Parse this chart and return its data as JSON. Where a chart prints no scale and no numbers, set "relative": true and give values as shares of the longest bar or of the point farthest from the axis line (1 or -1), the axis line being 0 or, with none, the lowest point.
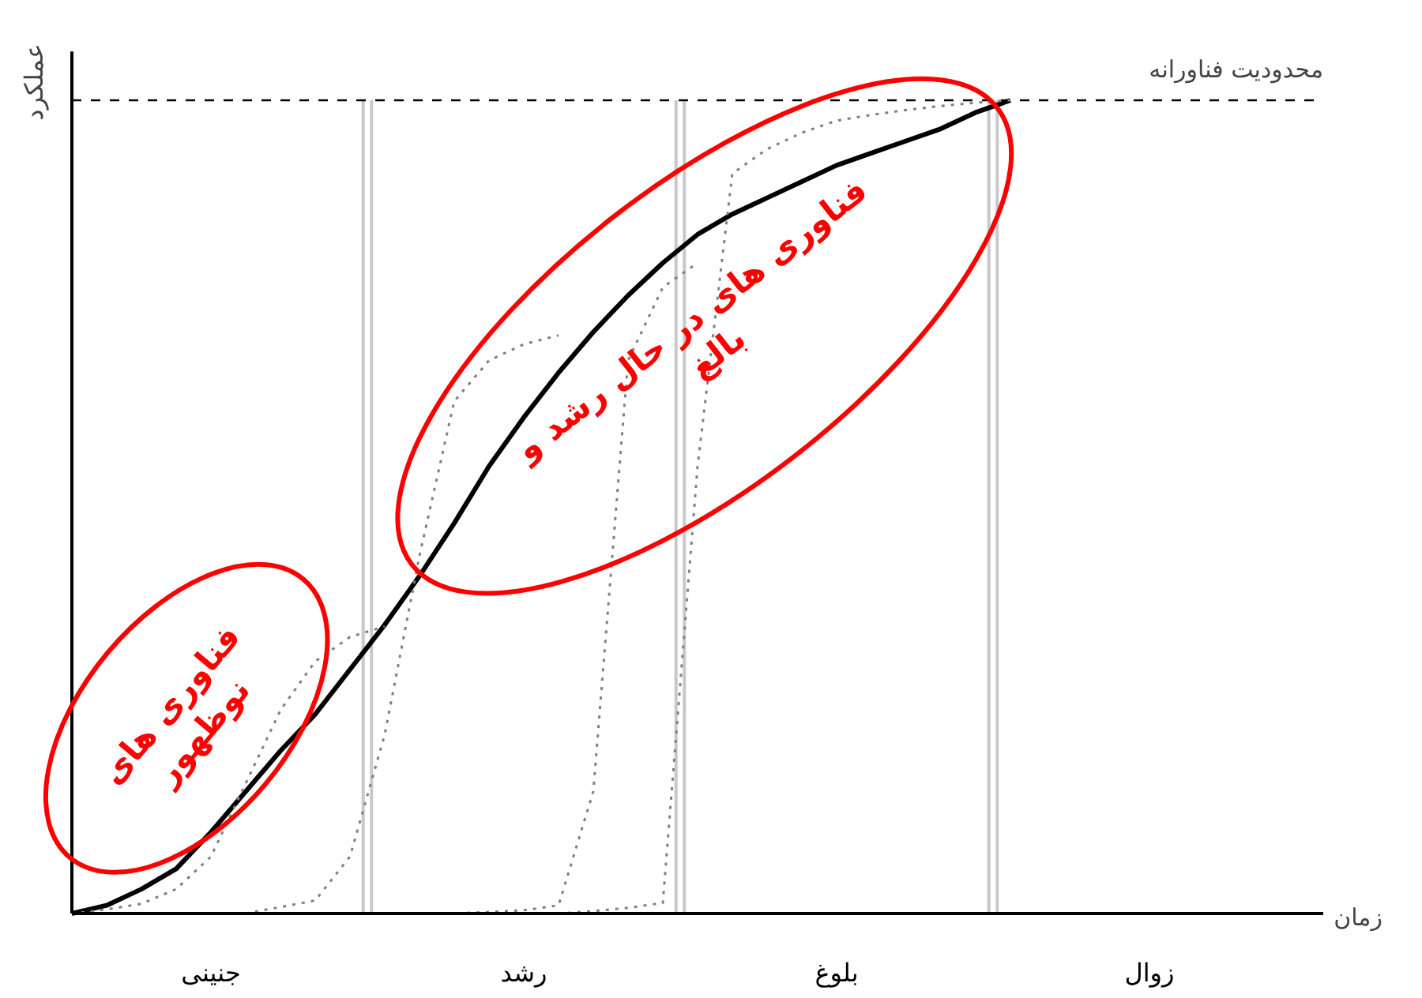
{
  "chart_data": {
    "type": "line",
    "relative": true,
    "xlabel": "زمان",
    "ylabel": "عملکرد",
    "categories": [
      null,
      null,
      null,
      null,
      "جنینی",
      null,
      null,
      null,
      null,
      null,
      null,
      null,
      null,
      "رشد",
      null,
      null,
      null,
      null,
      null,
      null,
      null,
      null,
      "بلوغ",
      null,
      null,
      null,
      null,
      null,
      null,
      null,
      null,
      "زوال",
      null,
      null,
      null,
      null,
      null
    ],
    "series": [
      {
        "color": "#000000",
        "line_style": "solid",
        "values": [
          0,
          0.01,
          0.03,
          0.055,
          0.1,
          0.15,
          0.2,
          0.245,
          0.3,
          0.355,
          0.415,
          0.48,
          0.55,
          0.61,
          0.665,
          0.715,
          0.76,
          0.8,
          0.835,
          0.86,
          0.88,
          0.9,
          0.92,
          0.935,
          0.95,
          0.965,
          0.985,
          1,
          null,
          null,
          null,
          null,
          null,
          null,
          null,
          null,
          null
        ]
      },
      {
        "color": "#808080",
        "line_style": "dotted",
        "values": [
          0,
          0.005,
          0.012,
          0.03,
          0.07,
          0.16,
          0.25,
          0.31,
          0.34,
          0.353,
          null,
          null,
          null,
          null,
          null,
          null,
          null,
          null,
          null,
          null,
          null,
          null,
          null,
          null,
          null,
          null,
          null,
          null,
          null,
          null,
          null,
          null,
          null,
          null,
          null,
          null,
          null
        ]
      },
      {
        "color": "#808080",
        "line_style": "dotted",
        "values": [
          null,
          null,
          null,
          null,
          null,
          0,
          0.008,
          0.016,
          0.07,
          0.22,
          0.44,
          0.63,
          0.68,
          0.7,
          0.711,
          null,
          null,
          null,
          null,
          null,
          null,
          null,
          null,
          null,
          null,
          null,
          null,
          null,
          null,
          null,
          null,
          null,
          null,
          null,
          null,
          null,
          null
        ]
      },
      {
        "color": "#808080",
        "line_style": "dotted",
        "values": [
          null,
          null,
          null,
          null,
          null,
          null,
          null,
          null,
          null,
          null,
          0,
          0,
          0.002,
          0.004,
          0.01,
          0.15,
          0.68,
          0.77,
          0.8,
          null,
          null,
          null,
          null,
          null,
          null,
          null,
          null,
          null,
          null,
          null,
          null,
          null,
          null,
          null,
          null,
          null,
          null
        ]
      },
      {
        "color": "#808080",
        "line_style": "dotted",
        "values": [
          null,
          null,
          null,
          null,
          null,
          null,
          null,
          null,
          null,
          null,
          null,
          null,
          null,
          null,
          0,
          0.003,
          0.007,
          0.013,
          0.55,
          0.91,
          0.94,
          0.96,
          0.975,
          0.982,
          0.988,
          0.993,
          0.997,
          1,
          null,
          null,
          null,
          null,
          null,
          null,
          null,
          null,
          null
        ]
      }
    ],
    "ref_lines": [
      {
        "axis": "y",
        "label": "محدودیت فناورانه",
        "line_style": "dashed",
        "color": "#000000"
      }
    ],
    "annotations": [
      "فناوری های\nنوظهور",
      "فناوری های در حال رشد و\nبالغ"
    ]
  }
}
